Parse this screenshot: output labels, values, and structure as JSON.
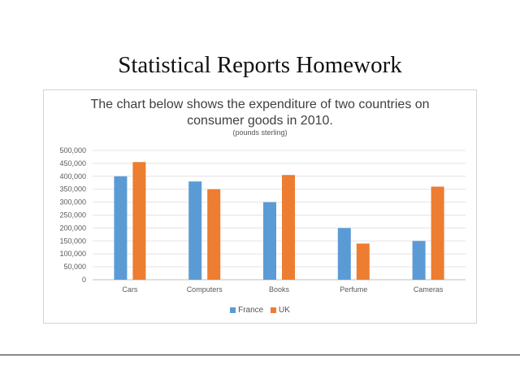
{
  "page": {
    "title": "Statistical Reports Homework"
  },
  "chart_data": {
    "type": "bar",
    "title_lines": [
      "The chart below shows the expenditure of two countries on",
      "consumer goods in 2010."
    ],
    "subtitle": "(pounds sterling)",
    "categories": [
      "Cars",
      "Computers",
      "Books",
      "Perfume",
      "Cameras"
    ],
    "series": [
      {
        "name": "France",
        "color": "#5b9bd5",
        "values": [
          400000,
          380000,
          300000,
          200000,
          150000
        ]
      },
      {
        "name": "UK",
        "color": "#ed7d31",
        "values": [
          455000,
          350000,
          405000,
          140000,
          360000
        ]
      }
    ],
    "ylim": [
      0,
      500000
    ],
    "yticks": [
      "0",
      "50,000",
      "100,000",
      "150,000",
      "200,000",
      "250,000",
      "300,000",
      "350,000",
      "400,000",
      "450,000",
      "500,000"
    ],
    "grid": true,
    "legend_position": "bottom"
  }
}
